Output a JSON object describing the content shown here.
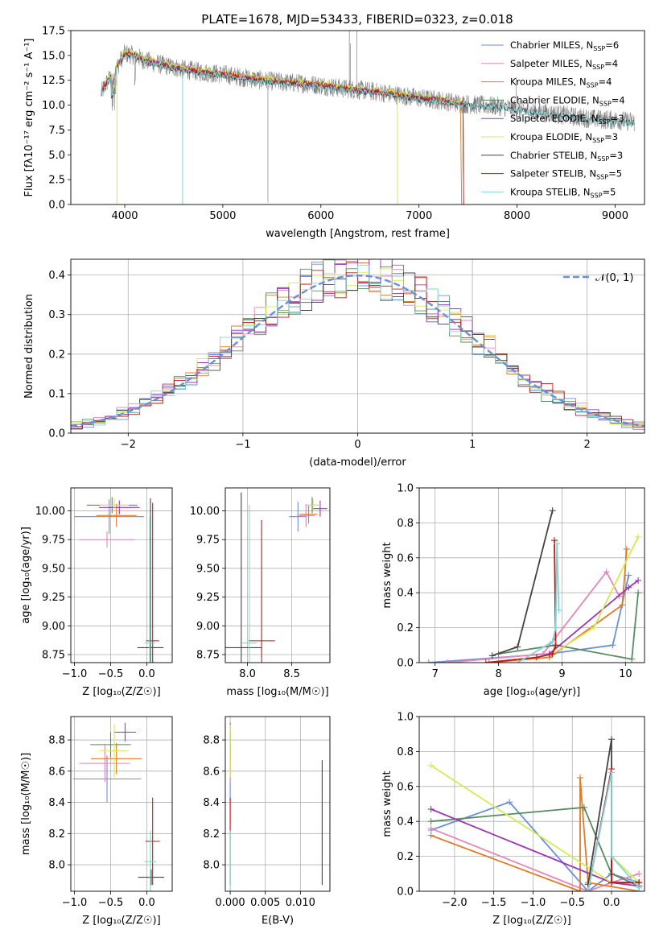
{
  "figure": {
    "title": "PLATE=1678, MJD=53433, FIBERID=0323, z=0.018"
  },
  "chart_data": [
    {
      "id": "spectrum",
      "type": "line",
      "title": "PLATE=1678, MJD=53433, FIBERID=0323, z=0.018",
      "xlabel": "wavelength [Angstrom, rest frame]",
      "ylabel": "Flux [fλ10⁻¹⁷ erg cm⁻² s⁻¹ A⁻¹]",
      "xlim": [
        3450,
        9300
      ],
      "ylim": [
        0,
        17.5
      ],
      "xticks": [
        4000,
        5000,
        6000,
        7000,
        8000,
        9000
      ],
      "yticks": [
        0.0,
        2.5,
        5.0,
        7.5,
        10.0,
        12.5,
        15.0,
        17.5
      ],
      "xtick_labels": [
        "4000",
        "5000",
        "6000",
        "7000",
        "8000",
        "9000"
      ],
      "ytick_labels": [
        "0.0",
        "2.5",
        "5.0",
        "7.5",
        "10.0",
        "12.5",
        "15.0",
        "17.5"
      ],
      "grid": false,
      "legend_position": "top-right",
      "legend": [
        {
          "label": "Chabrier MILES, N",
          "sub": "SSP",
          "suffix": "=6",
          "color": "#6a8fdc"
        },
        {
          "label": "Salpeter MILES, N",
          "sub": "SSP",
          "suffix": "=4",
          "color": "#e585b8"
        },
        {
          "label": "Kroupa MILES, N",
          "sub": "SSP",
          "suffix": "=4",
          "color": "#e07b28"
        },
        {
          "label": "Chabrier ELODIE, N",
          "sub": "SSP",
          "suffix": "=4",
          "color": "#5a8a62"
        },
        {
          "label": "Salpeter ELODIE, N",
          "sub": "SSP",
          "suffix": "=3",
          "color": "#9b35b4"
        },
        {
          "label": "Kroupa ELODIE, N",
          "sub": "SSP",
          "suffix": "=3",
          "color": "#d2eb54"
        },
        {
          "label": "Chabrier STELIB, N",
          "sub": "SSP",
          "suffix": "=3",
          "color": "#444444"
        },
        {
          "label": "Salpeter STELIB, N",
          "sub": "SSP",
          "suffix": "=5",
          "color": "#c01818"
        },
        {
          "label": "Kroupa STELIB, N",
          "sub": "SSP",
          "suffix": "=5",
          "color": "#7fd6d6"
        }
      ],
      "data_color": "#808080",
      "continuum": {
        "x": [
          3750,
          3800,
          3900,
          4000,
          4100,
          4200,
          4400,
          4600,
          4800,
          5000,
          5200,
          5400,
          5600,
          5800,
          6000,
          6200,
          6400,
          6600,
          6800,
          7000,
          7200,
          7400,
          7600,
          7800,
          8000,
          8200,
          8400,
          8600,
          8800,
          9000,
          9200
        ],
        "y": [
          11.0,
          12.0,
          13.5,
          15.2,
          15.0,
          14.5,
          14.0,
          13.6,
          13.3,
          13.1,
          12.8,
          12.5,
          12.3,
          12.2,
          12.0,
          11.7,
          11.5,
          11.3,
          11.0,
          10.7,
          10.5,
          10.2,
          10.0,
          9.9,
          9.6,
          9.3,
          9.1,
          8.8,
          8.6,
          8.5,
          8.3
        ]
      }
    },
    {
      "id": "residuals",
      "type": "line",
      "xlabel": "(data-model)/error",
      "ylabel": "Normed distribution",
      "xlim": [
        -2.5,
        2.5
      ],
      "ylim": [
        0,
        0.44
      ],
      "xticks": [
        -2,
        -1,
        0,
        1,
        2
      ],
      "yticks": [
        0.0,
        0.1,
        0.2,
        0.3,
        0.4
      ],
      "xtick_labels": [
        "−2",
        "−1",
        "0",
        "1",
        "2"
      ],
      "ytick_labels": [
        "0.0",
        "0.1",
        "0.2",
        "0.3",
        "0.4"
      ],
      "grid": true,
      "legend_position": "top-right",
      "gaussian_label": "𝒩(0, 1)",
      "gaussian_color": "#6a8fdc"
    },
    {
      "id": "age_vs_Z",
      "type": "scatter",
      "xlabel": "Z [log₁₀(Z/Z☉)]",
      "ylabel": "age  [log₁₀(age/yr)]",
      "xlim": [
        -1.05,
        0.35
      ],
      "ylim": [
        8.68,
        10.2
      ],
      "xticks": [
        -1.0,
        -0.5,
        0.0
      ],
      "yticks": [
        8.75,
        9.0,
        9.25,
        9.5,
        9.75,
        10.0
      ],
      "xtick_labels": [
        "−1.0",
        "−0.5",
        "0.0"
      ],
      "ytick_labels": [
        "8.75",
        "9.00",
        "9.25",
        "9.50",
        "9.75",
        "10.00"
      ],
      "grid": true,
      "points": [
        {
          "x": -0.52,
          "y": 9.95,
          "xerr": 0.48,
          "yerr": 0.15,
          "color": "#6a8fdc"
        },
        {
          "x": -0.55,
          "y": 9.75,
          "xerr": 0.38,
          "yerr": 0.07,
          "color": "#e585b8"
        },
        {
          "x": -0.42,
          "y": 9.96,
          "xerr": 0.28,
          "yerr": 0.1,
          "color": "#e07b28"
        },
        {
          "x": -0.48,
          "y": 10.05,
          "xerr": 0.35,
          "yerr": 0.07,
          "color": "#5a8a62"
        },
        {
          "x": -0.38,
          "y": 10.03,
          "xerr": 0.28,
          "yerr": 0.06,
          "color": "#9b35b4"
        },
        {
          "x": -0.45,
          "y": 10.05,
          "xerr": 0.2,
          "yerr": 0.06,
          "color": "#d2eb54"
        },
        {
          "x": 0.05,
          "y": 8.81,
          "xerr": 0.18,
          "yerr": 1.3,
          "color": "#444444"
        },
        {
          "x": 0.08,
          "y": 8.87,
          "xerr": 0.09,
          "yerr": 1.2,
          "color": "#c01818"
        },
        {
          "x": 0.04,
          "y": 8.85,
          "xerr": 0.07,
          "yerr": 1.1,
          "color": "#7fd6d6"
        }
      ]
    },
    {
      "id": "age_vs_mass",
      "type": "scatter",
      "xlabel": "mass [log₁₀(M/M☉)]",
      "ylabel": "",
      "xlim": [
        7.75,
        8.93
      ],
      "ylim": [
        8.68,
        10.2
      ],
      "xticks": [
        8.0,
        8.5
      ],
      "yticks": [
        8.75,
        9.0,
        9.25,
        9.5,
        9.75,
        10.0
      ],
      "xtick_labels": [
        "8.0",
        "8.5"
      ],
      "ytick_labels": [
        "8.75",
        "9.00",
        "9.25",
        "9.50",
        "9.75",
        "10.00"
      ],
      "grid": true,
      "points": [
        {
          "x": 8.57,
          "y": 9.95,
          "xerr": 0.1,
          "yerr": 0.13,
          "color": "#6a8fdc"
        },
        {
          "x": 8.66,
          "y": 9.96,
          "xerr": 0.1,
          "yerr": 0.1,
          "color": "#e585b8"
        },
        {
          "x": 8.69,
          "y": 9.97,
          "xerr": 0.1,
          "yerr": 0.08,
          "color": "#e07b28"
        },
        {
          "x": 8.73,
          "y": 10.05,
          "xerr": 0.07,
          "yerr": 0.07,
          "color": "#5a8a62"
        },
        {
          "x": 8.82,
          "y": 10.02,
          "xerr": 0.08,
          "yerr": 0.07,
          "color": "#9b35b4"
        },
        {
          "x": 8.74,
          "y": 10.05,
          "xerr": 0.08,
          "yerr": 0.05,
          "color": "#d2eb54"
        },
        {
          "x": 7.93,
          "y": 8.81,
          "xerr": 0.23,
          "yerr": 1.35,
          "color": "#444444"
        },
        {
          "x": 8.16,
          "y": 8.87,
          "xerr": 0.15,
          "yerr": 1.05,
          "color": "#c01818"
        },
        {
          "x": 8.02,
          "y": 8.85,
          "xerr": 0.08,
          "yerr": 1.2,
          "color": "#7fd6d6"
        }
      ]
    },
    {
      "id": "massweight_vs_age",
      "type": "line",
      "xlabel": "age  [log₁₀(age/yr)]",
      "ylabel": "mass weight",
      "xlim": [
        6.75,
        10.3
      ],
      "ylim": [
        0,
        1.0
      ],
      "xticks": [
        7,
        8,
        9,
        10
      ],
      "yticks": [
        0.0,
        0.2,
        0.4,
        0.6,
        0.8,
        1.0
      ],
      "xtick_labels": [
        "7",
        "8",
        "9",
        "10"
      ],
      "ytick_labels": [
        "0.0",
        "0.2",
        "0.4",
        "0.6",
        "0.8",
        "1.0"
      ],
      "grid": true,
      "series": [
        {
          "color": "#6a8fdc",
          "x": [
            6.9,
            8.8,
            9.8,
            10.05
          ],
          "y": [
            0.0,
            0.05,
            0.1,
            0.5
          ]
        },
        {
          "color": "#e585b8",
          "x": [
            7.2,
            8.7,
            9.7,
            9.9
          ],
          "y": [
            0.0,
            0.05,
            0.52,
            0.38
          ]
        },
        {
          "color": "#e07b28",
          "x": [
            7.85,
            8.8,
            9.95,
            10.02
          ],
          "y": [
            0.0,
            0.03,
            0.33,
            0.65
          ]
        },
        {
          "color": "#5a8a62",
          "x": [
            8.0,
            8.9,
            10.1,
            10.2
          ],
          "y": [
            0.05,
            0.1,
            0.02,
            0.4
          ]
        },
        {
          "color": "#9b35b4",
          "x": [
            8.8,
            10.05,
            10.2
          ],
          "y": [
            0.05,
            0.43,
            0.47
          ]
        },
        {
          "color": "#d2eb54",
          "x": [
            8.85,
            9.5,
            10.2
          ],
          "y": [
            0.05,
            0.2,
            0.72
          ]
        },
        {
          "color": "#444444",
          "x": [
            7.9,
            8.3,
            8.85
          ],
          "y": [
            0.04,
            0.09,
            0.87
          ]
        },
        {
          "color": "#c01818",
          "x": [
            7.8,
            8.6,
            8.85,
            8.9,
            8.88
          ],
          "y": [
            0.0,
            0.03,
            0.05,
            0.1,
            0.7
          ]
        },
        {
          "color": "#7fd6d6",
          "x": [
            8.3,
            8.85,
            8.9,
            8.92,
            8.95
          ],
          "y": [
            0.0,
            0.12,
            0.2,
            0.68,
            0.3
          ]
        }
      ]
    },
    {
      "id": "mass_vs_Z",
      "type": "scatter",
      "xlabel": "Z [log₁₀(Z/Z☉)]",
      "ylabel": "mass [log₁₀(M/M☉)]",
      "xlim": [
        -1.05,
        0.35
      ],
      "ylim": [
        7.83,
        8.95
      ],
      "xticks": [
        -1.0,
        -0.5,
        0.0
      ],
      "yticks": [
        8.0,
        8.2,
        8.4,
        8.6,
        8.8
      ],
      "xtick_labels": [
        "−1.0",
        "−0.5",
        "0.0"
      ],
      "ytick_labels": [
        "8.0",
        "8.2",
        "8.4",
        "8.6",
        "8.8"
      ],
      "grid": true,
      "points": [
        {
          "x": -0.55,
          "y": 8.55,
          "xerr": 0.47,
          "yerr": 0.15,
          "color": "#6a8fdc"
        },
        {
          "x": -0.58,
          "y": 8.65,
          "xerr": 0.35,
          "yerr": 0.12,
          "color": "#e585b8"
        },
        {
          "x": -0.42,
          "y": 8.68,
          "xerr": 0.35,
          "yerr": 0.1,
          "color": "#e07b28"
        },
        {
          "x": -0.5,
          "y": 8.77,
          "xerr": 0.28,
          "yerr": 0.08,
          "color": "#5a8a62"
        },
        {
          "x": -0.3,
          "y": 8.85,
          "xerr": 0.15,
          "yerr": 0.06,
          "color": "#9b35b4"
        },
        {
          "x": -0.45,
          "y": 8.73,
          "xerr": 0.2,
          "yerr": 0.17,
          "color": "#d2eb54"
        },
        {
          "x": 0.06,
          "y": 7.92,
          "xerr": 0.18,
          "yerr": 0.05,
          "color": "#444444"
        },
        {
          "x": 0.08,
          "y": 8.15,
          "xerr": 0.1,
          "yerr": 0.28,
          "color": "#c01818"
        },
        {
          "x": 0.05,
          "y": 8.02,
          "xerr": 0.08,
          "yerr": 0.2,
          "color": "#7fd6d6"
        }
      ]
    },
    {
      "id": "mass_vs_EBV",
      "type": "scatter",
      "xlabel": "E(B-V)",
      "ylabel": "",
      "xlim": [
        -0.0007,
        0.0142
      ],
      "ylim": [
        7.83,
        8.95
      ],
      "xticks": [
        0.0,
        0.005,
        0.01
      ],
      "yticks": [
        8.0,
        8.2,
        8.4,
        8.6,
        8.8
      ],
      "xtick_labels": [
        "0.000",
        "0.005",
        "0.010"
      ],
      "ytick_labels": [
        "8.0",
        "8.2",
        "8.4",
        "8.6",
        "8.8"
      ],
      "grid": true,
      "points": [
        {
          "x": 0.0,
          "y": 8.55,
          "xerr": 0,
          "yerr": 0.15,
          "color": "#6a8fdc"
        },
        {
          "x": 0.0,
          "y": 8.65,
          "xerr": 0,
          "yerr": 0.12,
          "color": "#e585b8"
        },
        {
          "x": 0.0,
          "y": 8.68,
          "xerr": 0,
          "yerr": 0.1,
          "color": "#e07b28"
        },
        {
          "x": 0.0,
          "y": 8.77,
          "xerr": 0,
          "yerr": 0.08,
          "color": "#5a8a62"
        },
        {
          "x": 0.0,
          "y": 8.85,
          "xerr": 0,
          "yerr": 0.06,
          "color": "#9b35b4"
        },
        {
          "x": 0.0,
          "y": 8.73,
          "xerr": 0,
          "yerr": 0.17,
          "color": "#d2eb54"
        },
        {
          "x": 0.0131,
          "y": 8.27,
          "xerr": 0,
          "yerr": 0.4,
          "color": "#444444"
        },
        {
          "x": 0.0,
          "y": 8.15,
          "xerr": 0,
          "yerr": 0.28,
          "color": "#c01818"
        },
        {
          "x": 0.0,
          "y": 8.02,
          "xerr": 0,
          "yerr": 0.2,
          "color": "#7fd6d6"
        }
      ]
    },
    {
      "id": "massweight_vs_Z",
      "type": "line",
      "xlabel": "Z [log₁₀(Z/Z☉)]",
      "ylabel": "mass weight",
      "xlim": [
        -2.45,
        0.42
      ],
      "ylim": [
        0,
        1.0
      ],
      "xticks": [
        -2.0,
        -1.5,
        -1.0,
        -0.5,
        0.0
      ],
      "yticks": [
        0.0,
        0.2,
        0.4,
        0.6,
        0.8,
        1.0
      ],
      "xtick_labels": [
        "−2.0",
        "−1.5",
        "−1.0",
        "−0.5",
        "0.0"
      ],
      "ytick_labels": [
        "0.0",
        "0.2",
        "0.4",
        "0.6",
        "0.8",
        "1.0"
      ],
      "grid": true,
      "series": [
        {
          "color": "#6a8fdc",
          "x": [
            -2.3,
            -1.3,
            -0.3,
            0.0,
            0.35
          ],
          "y": [
            0.35,
            0.51,
            0.0,
            0.1,
            0.05
          ]
        },
        {
          "color": "#e585b8",
          "x": [
            -2.3,
            -0.3,
            0.0,
            0.35
          ],
          "y": [
            0.36,
            0.0,
            0.05,
            0.1
          ]
        },
        {
          "color": "#e07b28",
          "x": [
            -2.3,
            -0.4,
            -0.4,
            -0.3,
            0.35
          ],
          "y": [
            0.32,
            0.0,
            0.65,
            0.05,
            0.0
          ]
        },
        {
          "color": "#5a8a62",
          "x": [
            -2.3,
            -0.35,
            0.0,
            0.35
          ],
          "y": [
            0.4,
            0.48,
            0.1,
            0.03
          ]
        },
        {
          "color": "#9b35b4",
          "x": [
            -2.3,
            0.0,
            0.35
          ],
          "y": [
            0.47,
            0.05,
            0.03
          ]
        },
        {
          "color": "#d2eb54",
          "x": [
            -2.3,
            0.0,
            0.0,
            0.35
          ],
          "y": [
            0.72,
            0.05,
            0.2,
            0.05
          ]
        },
        {
          "color": "#444444",
          "x": [
            -0.3,
            0.0,
            0.0,
            0.35
          ],
          "y": [
            0.04,
            0.87,
            0.05,
            0.05
          ]
        },
        {
          "color": "#c01818",
          "x": [
            -0.3,
            0.0,
            0.0,
            0.35
          ],
          "y": [
            0.0,
            0.7,
            0.05,
            0.05
          ]
        },
        {
          "color": "#7fd6d6",
          "x": [
            -0.3,
            0.0,
            0.0,
            0.35
          ],
          "y": [
            0.0,
            0.68,
            0.2,
            0.02
          ]
        }
      ]
    }
  ]
}
